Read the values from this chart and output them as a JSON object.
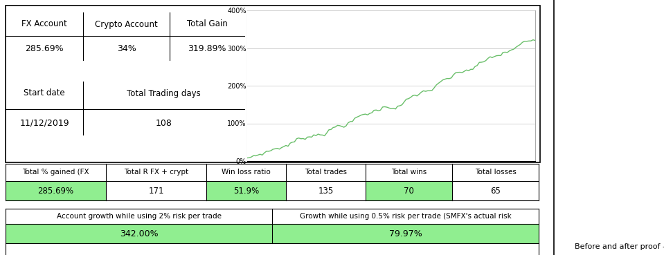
{
  "fx_account_label": "FX Account",
  "fx_account_value": "285.69%",
  "crypto_account_label": "Crypto Account",
  "crypto_account_value": "34%",
  "total_gain_label": "Total Gain",
  "total_gain_value": "319.89%",
  "start_date_label": "Start date",
  "start_date_value": "11/12/2019",
  "trading_days_label": "Total Trading days",
  "trading_days_value": "108",
  "table1_headers": [
    "Total % gained (FX",
    "Total R FX + crypt",
    "Win loss ratio",
    "Total trades",
    "Total wins",
    "Total losses"
  ],
  "table1_values": [
    "285.69%",
    "171",
    "51.9%",
    "135",
    "70",
    "65"
  ],
  "table1_green_cols": [
    0,
    2,
    4
  ],
  "table2_headers": [
    "Account growth while using 2% risk per trade",
    "Growth while using 0.5% risk per trade (SMFX's actual risk"
  ],
  "table2_values": [
    "342.00%",
    "79.97%"
  ],
  "footer_text": "Before and after proof -",
  "green_fill": "#90EE90",
  "line_color": "#6abf6a",
  "bg_color": "#ffffff",
  "border_color": "#000000",
  "chart_ylim": [
    0,
    400
  ],
  "chart_xlim": [
    0,
    134
  ]
}
